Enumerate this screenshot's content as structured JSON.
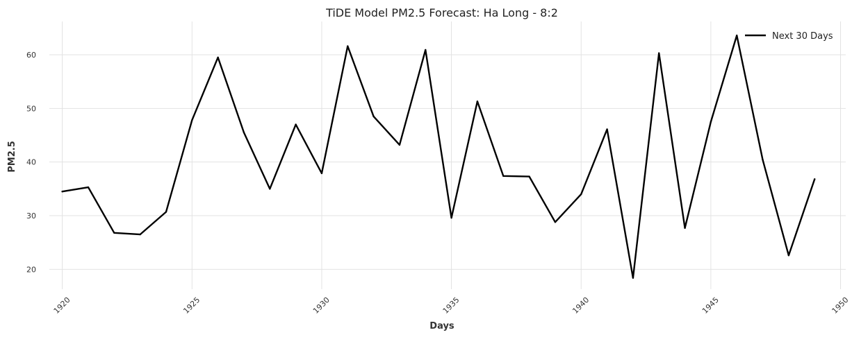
{
  "chart_data": {
    "type": "line",
    "title": "TiDE Model PM2.5 Forecast: Ha Long - 8:2",
    "xlabel": "Days",
    "ylabel": "PM2.5",
    "xlim": [
      1919.5,
      1950.2
    ],
    "ylim": [
      16.3,
      66.2
    ],
    "xticks": [
      1920,
      1925,
      1930,
      1935,
      1940,
      1945,
      1950
    ],
    "yticks": [
      20,
      30,
      40,
      50,
      60
    ],
    "grid": true,
    "legend_position": "top-right",
    "series": [
      {
        "name": "Next 30 Days",
        "color": "#000000",
        "x": [
          1920,
          1921,
          1922,
          1923,
          1924,
          1925,
          1926,
          1927,
          1928,
          1929,
          1930,
          1931,
          1932,
          1933,
          1934,
          1935,
          1936,
          1937,
          1938,
          1939,
          1940,
          1941,
          1942,
          1943,
          1944,
          1945,
          1946,
          1947,
          1948,
          1949
        ],
        "y": [
          34.5,
          35.3,
          26.8,
          26.5,
          30.7,
          47.8,
          59.5,
          45.5,
          35.0,
          47.0,
          37.9,
          61.6,
          48.5,
          43.2,
          60.9,
          29.6,
          51.3,
          37.4,
          37.3,
          28.8,
          34.0,
          46.1,
          18.4,
          60.3,
          27.7,
          47.5,
          63.6,
          40.4,
          22.6,
          36.8
        ]
      }
    ]
  }
}
